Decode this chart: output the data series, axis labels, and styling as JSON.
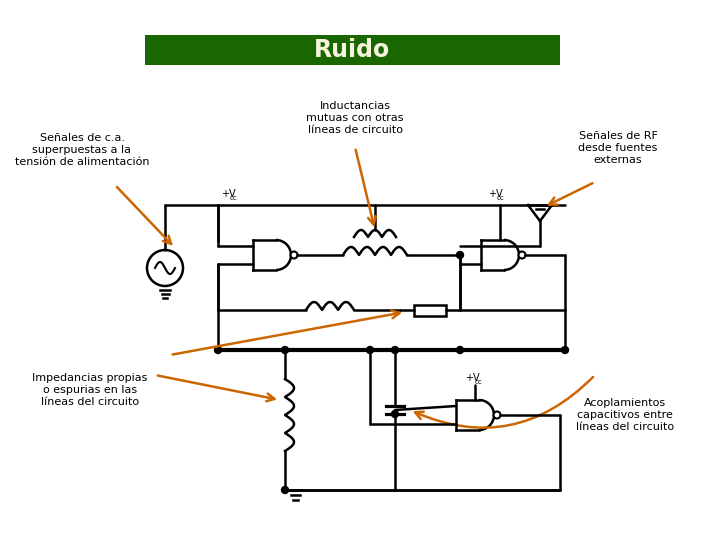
{
  "title": "Ruido",
  "title_bg_color": "#1a6600",
  "title_text_color": "#f5f5dc",
  "bg_color": "#ffffff",
  "arrow_color": "#cc6600",
  "line_color": "#000000",
  "annotations": {
    "senales_ca": "Señales de c.a.\nsuperpuestas a la\ntensión de alimentación",
    "inductancias": "Inductancias\nmutuas con otras\nlíneas de circuito",
    "senales_rf": "Señales de RF\ndesde fuentes\nexternas",
    "impedancias": "Impedancias propias\no espurias en las\nlíneas del circuito",
    "acoplamientos": "Acoplamientos\ncapacitivos entre\nlíneas del circuito"
  }
}
